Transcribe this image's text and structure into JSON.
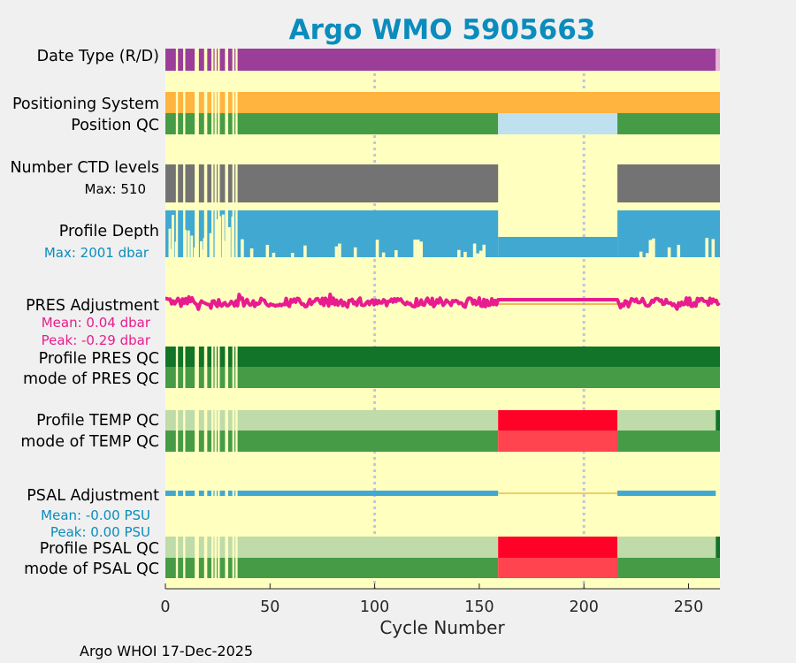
{
  "chart_data": {
    "type": "status-timeline",
    "title": "Argo WMO 5905663",
    "xlabel": "Cycle Number",
    "xlim": [
      0,
      265
    ],
    "xticks": [
      0,
      50,
      100,
      150,
      200,
      250
    ],
    "gridlines_at": [
      100,
      200
    ],
    "footer": "Argo WHOI 17-Dec-2025",
    "gaps": [
      [
        5,
        6
      ],
      [
        8.5,
        9.5
      ],
      [
        14,
        16
      ],
      [
        18.5,
        20
      ],
      [
        22,
        23
      ],
      [
        23.5,
        24.5
      ],
      [
        25,
        26
      ],
      [
        28.5,
        30
      ],
      [
        32,
        33
      ],
      [
        33.5,
        34.5
      ]
    ],
    "rows": [
      {
        "key": "date_type",
        "label": "Date Type (R/D)",
        "segments": [
          [
            0,
            263,
            "D"
          ],
          [
            263,
            265,
            "R"
          ]
        ]
      },
      {
        "key": "positioning",
        "label": "Positioning System",
        "segments": [
          [
            0,
            265,
            "GPS"
          ]
        ]
      },
      {
        "key": "position_qc",
        "label": "Position QC",
        "segments": [
          [
            0,
            159,
            "good"
          ],
          [
            159,
            216,
            "missing"
          ],
          [
            216,
            265,
            "good"
          ]
        ]
      },
      {
        "key": "ctd_levels",
        "label": "Number CTD levels",
        "sublabel": "Max: 510",
        "segments": [
          [
            0,
            159,
            "data"
          ],
          [
            216,
            265,
            "data"
          ]
        ]
      },
      {
        "key": "profile_depth",
        "label": "Profile Depth",
        "sublabel": "Max: 2001 dbar",
        "segments": [
          [
            0,
            159,
            "data"
          ],
          [
            159,
            216,
            "data"
          ],
          [
            216,
            265,
            "data"
          ]
        ]
      },
      {
        "key": "pres_adjustment",
        "label": "PRES Adjustment",
        "sublabels": [
          "Mean: 0.04 dbar",
          "Peak: -0.29 dbar"
        ],
        "mean": 0.04,
        "peak": -0.29
      },
      {
        "key": "profile_pres_qc",
        "label": "Profile PRES QC",
        "segments": [
          [
            0,
            265,
            "A"
          ]
        ]
      },
      {
        "key": "mode_pres_qc",
        "label": "mode of PRES QC",
        "segments": [
          [
            0,
            265,
            "good"
          ]
        ]
      },
      {
        "key": "profile_temp_qc",
        "label": "Profile TEMP QC",
        "segments": [
          [
            0,
            159,
            "B"
          ],
          [
            159,
            216,
            "F"
          ],
          [
            216,
            263,
            "B"
          ],
          [
            263,
            265,
            "A"
          ]
        ]
      },
      {
        "key": "mode_temp_qc",
        "label": "mode of TEMP QC",
        "segments": [
          [
            0,
            159,
            "good"
          ],
          [
            159,
            216,
            "bad"
          ],
          [
            216,
            265,
            "good"
          ]
        ]
      },
      {
        "key": "psal_adjustment",
        "label": "PSAL Adjustment",
        "sublabels": [
          "Mean: -0.00 PSU",
          "Peak: 0.00 PSU"
        ],
        "mean": -0.0,
        "peak": 0.0
      },
      {
        "key": "profile_psal_qc",
        "label": "Profile PSAL QC",
        "segments": [
          [
            0,
            159,
            "B"
          ],
          [
            159,
            216,
            "F"
          ],
          [
            216,
            263,
            "B"
          ],
          [
            263,
            265,
            "A"
          ]
        ]
      },
      {
        "key": "mode_psal_qc",
        "label": "mode of PSAL QC",
        "segments": [
          [
            0,
            159,
            "good"
          ],
          [
            159,
            216,
            "bad"
          ],
          [
            216,
            265,
            "good"
          ]
        ]
      }
    ]
  },
  "colors": {
    "page_bg": "#f0f0f0",
    "plot_bg": "#ffffc0",
    "title": "#0a8cbd",
    "grid": "#c0c4e4",
    "D": "#9a3e9a",
    "R": "#e8b4d8",
    "GPS": "#ffb440",
    "good": "#469b46",
    "missing": "#bfe0ef",
    "ctd": "#737373",
    "depth": "#41a9d1",
    "pres_adj": "#e81c8e",
    "pres_flat": "#e8a040",
    "A": "#117428",
    "B": "#bedba9",
    "F": "#ff0228",
    "bad": "#ff444f",
    "psal_adj": "#41a9d1",
    "psal_flat": "#e8c040",
    "pres_sub": "#e81c8e",
    "depth_sub": "#0a8cbd",
    "psal_sub": "#0a8cbd",
    "ctd_sub": "#000000"
  }
}
